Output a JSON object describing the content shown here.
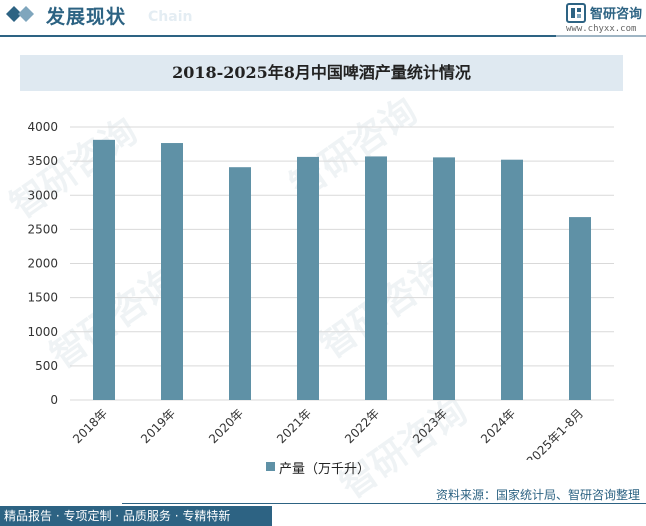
{
  "header": {
    "title": "发展现状",
    "subtitle": "Chain",
    "brand_name": "智研咨询",
    "brand_url": "www.chyxx.com"
  },
  "watermark_text": "智研咨询",
  "colors": {
    "brand": "#2d6383",
    "bar": "#5f91a6",
    "title_band": "#dfe9f1",
    "grid": "#d9d9d9"
  },
  "chart_data": {
    "type": "bar",
    "title": "2018-2025年8月中国啤酒产量统计情况",
    "categories": [
      "2018年",
      "2019年",
      "2020年",
      "2021年",
      "2022年",
      "2023年",
      "2024年",
      "2025年1-8月"
    ],
    "series": [
      {
        "name": "产量（万千升）",
        "values": [
          3812,
          3765,
          3411,
          3562,
          3569,
          3555,
          3521,
          2680
        ]
      }
    ],
    "ylim": [
      0,
      4000
    ],
    "yticks": [
      0,
      500,
      1000,
      1500,
      2000,
      2500,
      3000,
      3500,
      4000
    ],
    "grid": true,
    "legend_position": "bottom"
  },
  "footer": {
    "left": "精品报告 · 专项定制 · 品质服务 · 专精特新",
    "source": "资料来源：国家统计局、智研咨询整理"
  }
}
